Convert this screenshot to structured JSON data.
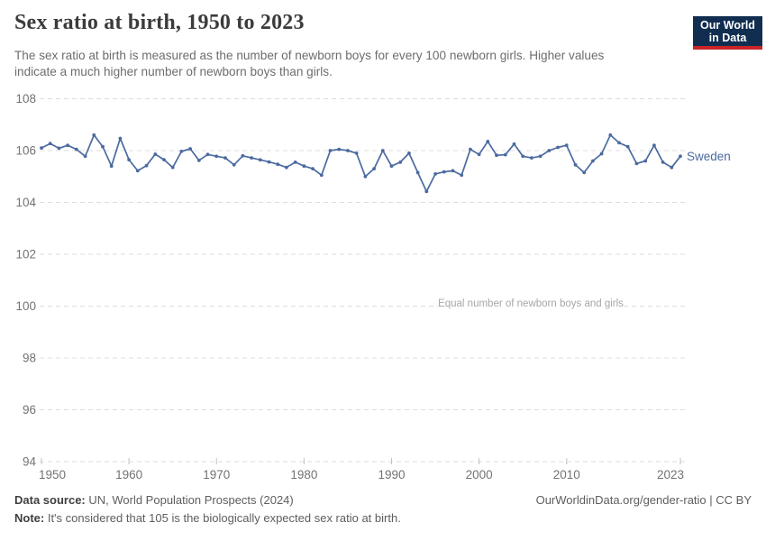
{
  "header": {
    "title": "Sex ratio at birth, 1950 to 2023",
    "subtitle_line1": "The sex ratio at birth is measured as the number of newborn boys for every 100 newborn girls. Higher values",
    "subtitle_line2": "indicate a much higher number of newborn boys than girls.",
    "logo": {
      "line1": "Our World",
      "line2": "in Data",
      "bg_color": "#112e51",
      "accent_color": "#ca2428"
    }
  },
  "chart_data": {
    "type": "line",
    "title": "Sex ratio at birth, 1950 to 2023",
    "xlabel": "",
    "ylabel": "",
    "xlim": [
      1950,
      2023
    ],
    "ylim": [
      94,
      108
    ],
    "x_ticks": [
      1950,
      1960,
      1970,
      1980,
      1990,
      2000,
      2010,
      2023
    ],
    "y_ticks": [
      94,
      96,
      98,
      100,
      102,
      104,
      106,
      108
    ],
    "grid": "horizontal-dashed",
    "legend_position": "end-of-line",
    "annotation": {
      "text": "Equal number of newborn boys and girls",
      "y": 100
    },
    "end_label": "Sweden",
    "series": [
      {
        "name": "Sweden",
        "color": "#4b6a9f",
        "x": [
          1950,
          1951,
          1952,
          1953,
          1954,
          1955,
          1956,
          1957,
          1958,
          1959,
          1960,
          1961,
          1962,
          1963,
          1964,
          1965,
          1966,
          1967,
          1968,
          1969,
          1970,
          1971,
          1972,
          1973,
          1974,
          1975,
          1976,
          1977,
          1978,
          1979,
          1980,
          1981,
          1982,
          1983,
          1984,
          1985,
          1986,
          1987,
          1988,
          1989,
          1990,
          1991,
          1992,
          1993,
          1994,
          1995,
          1996,
          1997,
          1998,
          1999,
          2000,
          2001,
          2002,
          2003,
          2004,
          2005,
          2006,
          2007,
          2008,
          2009,
          2010,
          2011,
          2012,
          2013,
          2014,
          2015,
          2016,
          2017,
          2018,
          2019,
          2020,
          2021,
          2022,
          2023
        ],
        "values": [
          106.1,
          106.27,
          106.09,
          106.2,
          106.05,
          105.78,
          106.6,
          106.15,
          105.4,
          106.47,
          105.65,
          105.22,
          105.42,
          105.86,
          105.65,
          105.35,
          105.97,
          106.07,
          105.62,
          105.85,
          105.78,
          105.72,
          105.45,
          105.8,
          105.72,
          105.64,
          105.56,
          105.47,
          105.35,
          105.55,
          105.4,
          105.3,
          105.05,
          106.0,
          106.05,
          106.0,
          105.9,
          105.0,
          105.3,
          106.0,
          105.4,
          105.55,
          105.9,
          105.15,
          104.42,
          105.1,
          105.18,
          105.22,
          105.05,
          106.05,
          105.85,
          106.35,
          105.82,
          105.84,
          106.25,
          105.78,
          105.72,
          105.78,
          106.0,
          106.12,
          106.2,
          105.45,
          105.15,
          105.6,
          105.88,
          106.6,
          106.3,
          106.15,
          105.5,
          105.6,
          106.2,
          105.55,
          105.35,
          105.78
        ]
      }
    ]
  },
  "footer": {
    "source_label": "Data source:",
    "source_text": " UN, World Population Prospects (2024)",
    "note_label": "Note:",
    "note_text": " It's considered that 105 is the biologically expected sex ratio at birth.",
    "link": "OurWorldinData.org/gender-ratio | CC BY"
  },
  "colors": {
    "line": "#4b6a9f",
    "title_text": "#3b3b3b",
    "subtitle_text": "#6d6d6d",
    "axis_label": "#737373",
    "gridline": "#dcdcdc",
    "tick_mark": "#c0c0c0",
    "annotation_text": "#a6a6a6"
  }
}
